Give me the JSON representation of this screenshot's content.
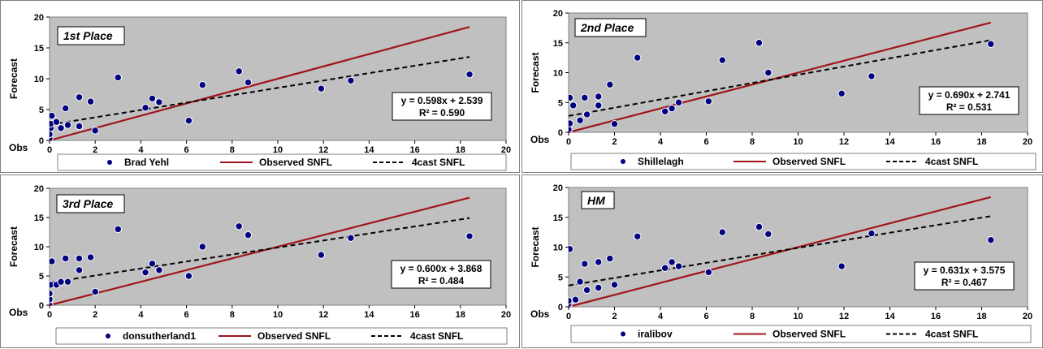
{
  "chart_data": [
    {
      "type": "scatter",
      "title": "1st Place",
      "xlabel": "Obs",
      "ylabel": "Forecast",
      "xlim": [
        0,
        20
      ],
      "ylim": [
        0,
        20
      ],
      "xticks": [
        "0",
        "2",
        "4",
        "6",
        "8",
        "10",
        "12",
        "14",
        "16",
        "18",
        "20"
      ],
      "yticks": [
        "0",
        "5",
        "10",
        "15",
        "20"
      ],
      "grid": false,
      "legend": "bottom",
      "series": [
        {
          "name": "Brad Yehl",
          "kind": "points",
          "color": "#000080",
          "points": [
            [
              0,
              0
            ],
            [
              0,
              0.3
            ],
            [
              0,
              1
            ],
            [
              0.05,
              2
            ],
            [
              0.05,
              2.7
            ],
            [
              0.1,
              4
            ],
            [
              0.3,
              3
            ],
            [
              0.5,
              2
            ],
            [
              0.7,
              5.2
            ],
            [
              0.8,
              2.5
            ],
            [
              1.3,
              7
            ],
            [
              1.3,
              2.3
            ],
            [
              1.8,
              6.3
            ],
            [
              2,
              1.6
            ],
            [
              3,
              10.2
            ],
            [
              4.2,
              5.3
            ],
            [
              4.5,
              6.8
            ],
            [
              4.8,
              6.2
            ],
            [
              6.1,
              3.2
            ],
            [
              6.7,
              9
            ],
            [
              8.3,
              11.2
            ],
            [
              8.7,
              9.4
            ],
            [
              11.9,
              8.4
            ],
            [
              13.2,
              9.7
            ],
            [
              18.4,
              10.7
            ]
          ]
        },
        {
          "name": "Observed SNFL",
          "kind": "line",
          "color": "#A0151B",
          "from": [
            0,
            0
          ],
          "to": [
            18.4,
            18.4
          ]
        },
        {
          "name": "4cast SNFL",
          "kind": "dashed",
          "color": "#000000",
          "from": [
            0,
            2.539
          ],
          "to": [
            18.4,
            13.54
          ]
        }
      ],
      "annotation": {
        "equation": "y = 0.598x + 2.539",
        "r2": "R² = 0.590"
      }
    },
    {
      "type": "scatter",
      "title": "2nd Place",
      "xlabel": "Obs",
      "ylabel": "Forecast",
      "xlim": [
        0,
        20
      ],
      "ylim": [
        0,
        20
      ],
      "xticks": [
        "0",
        "2",
        "4",
        "6",
        "8",
        "10",
        "12",
        "14",
        "16",
        "18",
        "20"
      ],
      "yticks": [
        "0",
        "5",
        "10",
        "15",
        "20"
      ],
      "grid": false,
      "legend": "bottom",
      "series": [
        {
          "name": "Shillelagh",
          "kind": "points",
          "color": "#000080",
          "points": [
            [
              0,
              0
            ],
            [
              0,
              0.5
            ],
            [
              0.05,
              1.5
            ],
            [
              0.05,
              5.8
            ],
            [
              0.2,
              4.5
            ],
            [
              0.5,
              2
            ],
            [
              0.7,
              5.8
            ],
            [
              0.8,
              3
            ],
            [
              1.3,
              6
            ],
            [
              1.3,
              4.5
            ],
            [
              1.8,
              8
            ],
            [
              2,
              1.4
            ],
            [
              3,
              12.5
            ],
            [
              4.2,
              3.5
            ],
            [
              4.5,
              4
            ],
            [
              4.8,
              5
            ],
            [
              6.1,
              5.2
            ],
            [
              6.7,
              12.1
            ],
            [
              8.3,
              15
            ],
            [
              8.7,
              10
            ],
            [
              11.9,
              6.5
            ],
            [
              13.2,
              9.4
            ],
            [
              18.4,
              14.8
            ]
          ]
        },
        {
          "name": "Observed SNFL",
          "kind": "line",
          "color": "#A0151B",
          "from": [
            0,
            0
          ],
          "to": [
            18.4,
            18.4
          ]
        },
        {
          "name": "4cast SNFL",
          "kind": "dashed",
          "color": "#000000",
          "from": [
            0,
            2.741
          ],
          "to": [
            18.4,
            15.44
          ]
        }
      ],
      "annotation": {
        "equation": "y = 0.690x + 2.741",
        "r2": "R² = 0.531"
      }
    },
    {
      "type": "scatter",
      "title": "3rd Place",
      "xlabel": "Obs",
      "ylabel": "Forecast",
      "xlim": [
        0,
        20
      ],
      "ylim": [
        0,
        20
      ],
      "xticks": [
        "0",
        "2",
        "4",
        "6",
        "8",
        "10",
        "12",
        "14",
        "16",
        "18",
        "20"
      ],
      "yticks": [
        "0",
        "5",
        "10",
        "15",
        "20"
      ],
      "grid": false,
      "legend": "bottom",
      "series": [
        {
          "name": "donsutherland1",
          "kind": "points",
          "color": "#000080",
          "points": [
            [
              0,
              0
            ],
            [
              0,
              1
            ],
            [
              0,
              2
            ],
            [
              0.05,
              3.5
            ],
            [
              0.1,
              7.5
            ],
            [
              0.3,
              3.5
            ],
            [
              0.5,
              4
            ],
            [
              0.7,
              8
            ],
            [
              0.8,
              4
            ],
            [
              1.3,
              8
            ],
            [
              1.3,
              6
            ],
            [
              1.8,
              8.2
            ],
            [
              2,
              2.3
            ],
            [
              3,
              13
            ],
            [
              4.2,
              5.6
            ],
            [
              4.5,
              7.1
            ],
            [
              4.8,
              6
            ],
            [
              6.1,
              5
            ],
            [
              6.7,
              10
            ],
            [
              8.3,
              13.5
            ],
            [
              8.7,
              12
            ],
            [
              11.9,
              8.6
            ],
            [
              13.2,
              11.5
            ],
            [
              18.4,
              11.8
            ]
          ]
        },
        {
          "name": "Observed SNFL",
          "kind": "line",
          "color": "#A0151B",
          "from": [
            0,
            0
          ],
          "to": [
            18.4,
            18.4
          ]
        },
        {
          "name": "4cast SNFL",
          "kind": "dashed",
          "color": "#000000",
          "from": [
            0,
            3.868
          ],
          "to": [
            18.4,
            14.91
          ]
        }
      ],
      "annotation": {
        "equation": "y = 0.600x + 3.868",
        "r2": "R² = 0.484"
      }
    },
    {
      "type": "scatter",
      "title": "HM",
      "xlabel": "Obs",
      "ylabel": "Forecast",
      "xlim": [
        0,
        20
      ],
      "ylim": [
        0,
        20
      ],
      "xticks": [
        "0",
        "2",
        "4",
        "6",
        "8",
        "10",
        "12",
        "14",
        "16",
        "18",
        "20"
      ],
      "yticks": [
        "0",
        "5",
        "10",
        "15",
        "20"
      ],
      "grid": false,
      "legend": "bottom",
      "series": [
        {
          "name": "iralibov",
          "kind": "points",
          "color": "#000080",
          "points": [
            [
              0,
              0
            ],
            [
              0,
              0.5
            ],
            [
              0,
              1
            ],
            [
              0.05,
              9.7
            ],
            [
              0.3,
              1.2
            ],
            [
              0.5,
              4.2
            ],
            [
              0.7,
              7.2
            ],
            [
              0.8,
              2.8
            ],
            [
              1.3,
              7.5
            ],
            [
              1.3,
              3.2
            ],
            [
              1.8,
              8.1
            ],
            [
              2,
              3.7
            ],
            [
              3,
              11.8
            ],
            [
              4.2,
              6.5
            ],
            [
              4.5,
              7.5
            ],
            [
              4.8,
              6.8
            ],
            [
              6.1,
              5.8
            ],
            [
              6.7,
              12.5
            ],
            [
              8.3,
              13.4
            ],
            [
              8.7,
              12.2
            ],
            [
              11.9,
              6.8
            ],
            [
              13.2,
              12.3
            ],
            [
              18.4,
              11.2
            ]
          ]
        },
        {
          "name": "Observed SNFL",
          "kind": "line",
          "color": "#A0151B",
          "from": [
            0,
            0
          ],
          "to": [
            18.4,
            18.4
          ]
        },
        {
          "name": "4cast SNFL",
          "kind": "dashed",
          "color": "#000000",
          "from": [
            0,
            3.575
          ],
          "to": [
            18.4,
            15.19
          ]
        }
      ],
      "annotation": {
        "equation": "y = 0.631x + 3.575",
        "r2": "R² = 0.467"
      }
    }
  ]
}
